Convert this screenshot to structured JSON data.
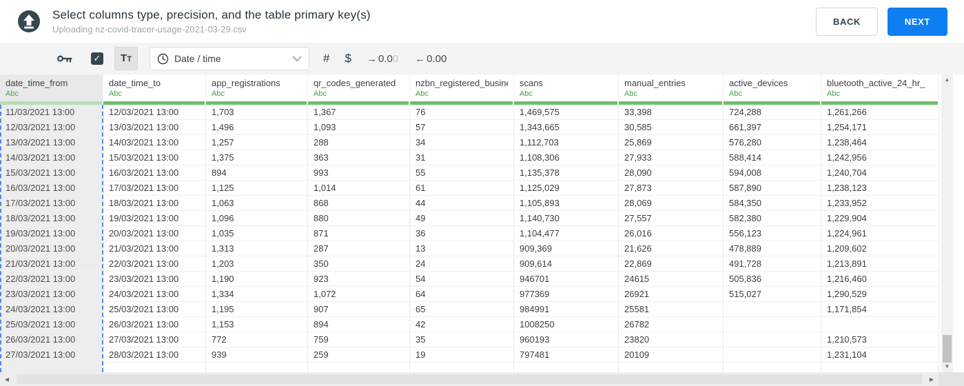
{
  "header": {
    "title": "Select columns type, precision, and the table primary key(s)",
    "subtitle": "Uploading nz-covid-tracer-usage-2021-03-29.csv",
    "back_label": "BACK",
    "next_label": "NEXT"
  },
  "toolbar": {
    "checkbox_checked": true,
    "checkmark": "✓",
    "text_type_label": "Tt",
    "type_dropdown_value": "Date / time",
    "number_label": "#",
    "currency_label": "$",
    "decimal_controls": [
      {
        "arrow": "→",
        "value": "0.0",
        "faded": "0"
      },
      {
        "arrow": "←",
        "value": "0.00",
        "faded": ""
      }
    ]
  },
  "table": {
    "columns": [
      {
        "name": "date_time_from",
        "type": "Abc",
        "selected": true
      },
      {
        "name": "date_time_to",
        "type": "Abc",
        "selected": false
      },
      {
        "name": "app_registrations",
        "type": "Abc",
        "selected": false
      },
      {
        "name": "qr_codes_generated",
        "type": "Abc",
        "selected": false
      },
      {
        "name": "nzbn_registered_busine",
        "type": "Abc",
        "selected": false
      },
      {
        "name": "scans",
        "type": "Abc",
        "selected": false
      },
      {
        "name": "manual_entries",
        "type": "Abc",
        "selected": false
      },
      {
        "name": "active_devices",
        "type": "Abc",
        "selected": false
      },
      {
        "name": "bluetooth_active_24_hr_",
        "type": "Abc",
        "selected": false
      }
    ],
    "rows": [
      [
        "11/03/2021 13:00",
        "12/03/2021 13:00",
        "1,703",
        "1,367",
        "76",
        "1,469,575",
        "33,398",
        "724,288",
        "1,261,266"
      ],
      [
        "12/03/2021 13:00",
        "13/03/2021 13:00",
        "1,496",
        "1,093",
        "57",
        "1,343,665",
        "30,585",
        "661,397",
        "1,254,171"
      ],
      [
        "13/03/2021 13:00",
        "14/03/2021 13:00",
        "1,257",
        "288",
        "34",
        "1,112,703",
        "25,869",
        "576,280",
        "1,238,464"
      ],
      [
        "14/03/2021 13:00",
        "15/03/2021 13:00",
        "1,375",
        "363",
        "31",
        "1,108,306",
        "27,933",
        "588,414",
        "1,242,956"
      ],
      [
        "15/03/2021 13:00",
        "16/03/2021 13:00",
        "894",
        "993",
        "55",
        "1,135,378",
        "28,090",
        "594,008",
        "1,240,704"
      ],
      [
        "16/03/2021 13:00",
        "17/03/2021 13:00",
        "1,125",
        "1,014",
        "61",
        "1,125,029",
        "27,873",
        "587,890",
        "1,238,123"
      ],
      [
        "17/03/2021 13:00",
        "18/03/2021 13:00",
        "1,063",
        "868",
        "44",
        "1,105,893",
        "28,069",
        "584,350",
        "1,233,952"
      ],
      [
        "18/03/2021 13:00",
        "19/03/2021 13:00",
        "1,096",
        "880",
        "49",
        "1,140,730",
        "27,557",
        "582,380",
        "1,229,904"
      ],
      [
        "19/03/2021 13:00",
        "20/03/2021 13:00",
        "1,035",
        "871",
        "36",
        "1,104,477",
        "26,016",
        "556,123",
        "1,224,961"
      ],
      [
        "20/03/2021 13:00",
        "21/03/2021 13:00",
        "1,313",
        "287",
        "13",
        "909,369",
        "21,626",
        "478,889",
        "1,209,602"
      ],
      [
        "21/03/2021 13:00",
        "22/03/2021 13:00",
        "1,203",
        "350",
        "24",
        "909,614",
        "22,869",
        "491,728",
        "1,213,891"
      ],
      [
        "22/03/2021 13:00",
        "23/03/2021 13:00",
        "1,190",
        "923",
        "54",
        "946701",
        "24615",
        "505,836",
        "1,216,460"
      ],
      [
        "23/03/2021 13:00",
        "24/03/2021 13:00",
        "1,334",
        "1,072",
        "64",
        "977369",
        "26921",
        "515,027",
        "1,290,529"
      ],
      [
        "24/03/2021 13:00",
        "25/03/2021 13:00",
        "1,195",
        "907",
        "65",
        "984991",
        "25581",
        "",
        "1,171,854"
      ],
      [
        "25/03/2021 13:00",
        "26/03/2021 13:00",
        "1,153",
        "894",
        "42",
        "1008250",
        "26782",
        "",
        ""
      ],
      [
        "26/03/2021 13:00",
        "27/03/2021 13:00",
        "772",
        "759",
        "35",
        "960193",
        "23820",
        "",
        "1,210,573"
      ],
      [
        "27/03/2021 13:00",
        "28/03/2021 13:00",
        "939",
        "259",
        "19",
        "797481",
        "20109",
        "",
        "1,231,104"
      ]
    ]
  },
  "colors": {
    "accent_blue": "#0d7ff2",
    "type_green": "#43a047",
    "column_bar_green": "#6fc06f",
    "selected_bar_green": "#b7dcb7",
    "selection_dash_blue": "#4b8bf5",
    "icon_dark": "#36474f"
  },
  "scrollbar": {
    "up_arrow": "▲",
    "down_arrow": "▼",
    "left_arrow": "◀",
    "right_arrow": "▶"
  }
}
